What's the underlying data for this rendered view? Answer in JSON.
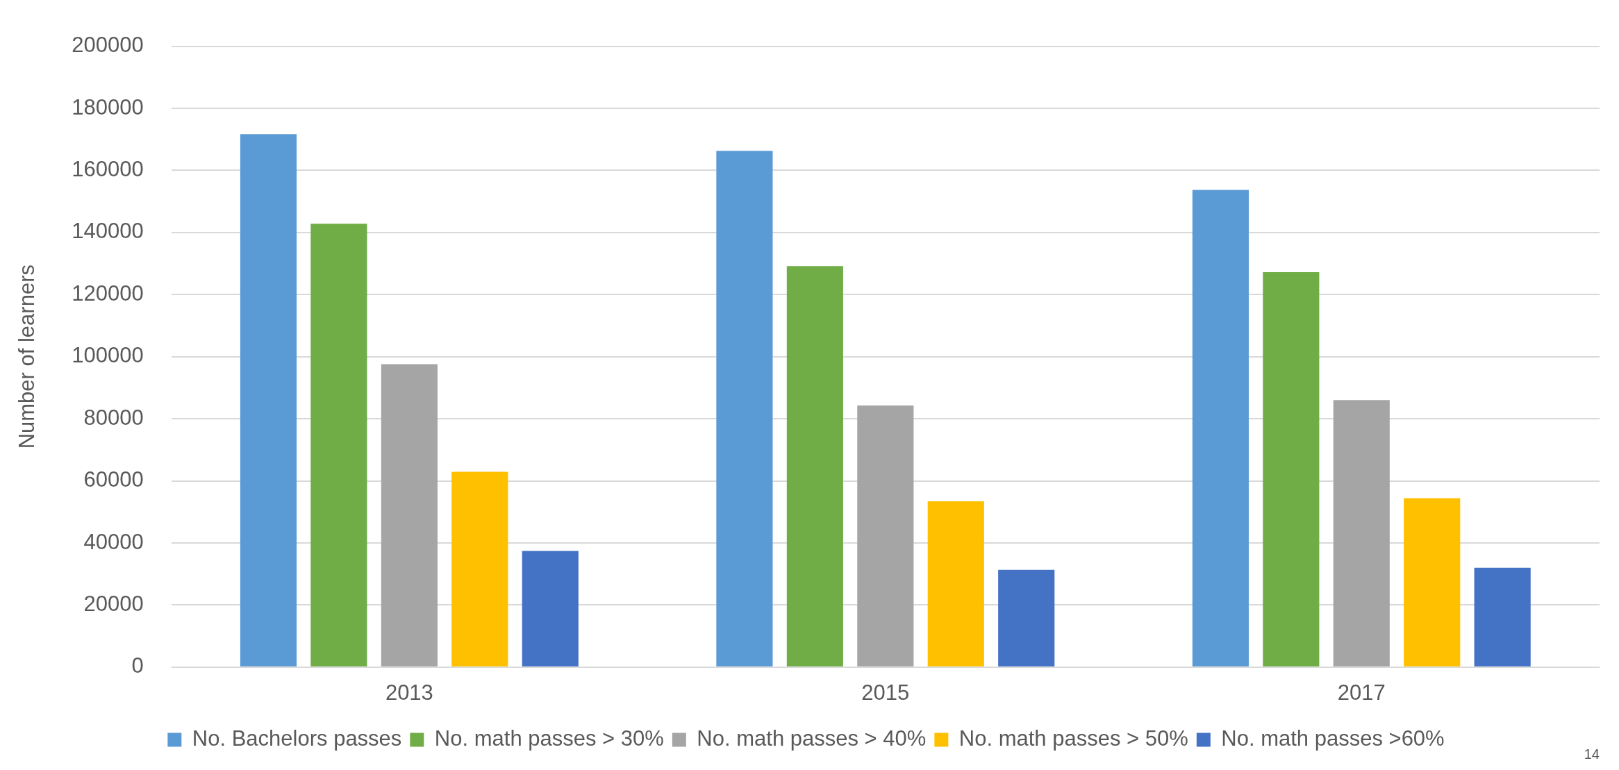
{
  "chart_data": {
    "type": "bar",
    "ylabel": "Number of learners",
    "categories": [
      "2013",
      "2015",
      "2017"
    ],
    "series": [
      {
        "name": "No. Bachelors passes",
        "color": "#5b9bd5",
        "values": [
          171700,
          166300,
          153700
        ]
      },
      {
        "name": "No. math passes > 30%",
        "color": "#70ad47",
        "values": [
          142800,
          129200,
          127200
        ]
      },
      {
        "name": "No. math passes > 40%",
        "color": "#a5a5a5",
        "values": [
          97600,
          84300,
          86000
        ]
      },
      {
        "name": "No. math passes > 50%",
        "color": "#ffc000",
        "values": [
          62900,
          53400,
          54400
        ]
      },
      {
        "name": "No. math passes >60%",
        "color": "#4472c4",
        "values": [
          37400,
          31300,
          32000
        ]
      }
    ],
    "ylim": [
      0,
      200000
    ],
    "yticks": [
      0,
      20000,
      40000,
      60000,
      80000,
      100000,
      120000,
      140000,
      160000,
      180000,
      200000
    ],
    "grid": "y",
    "legend": "bottom",
    "annotations": [
      "14"
    ]
  }
}
